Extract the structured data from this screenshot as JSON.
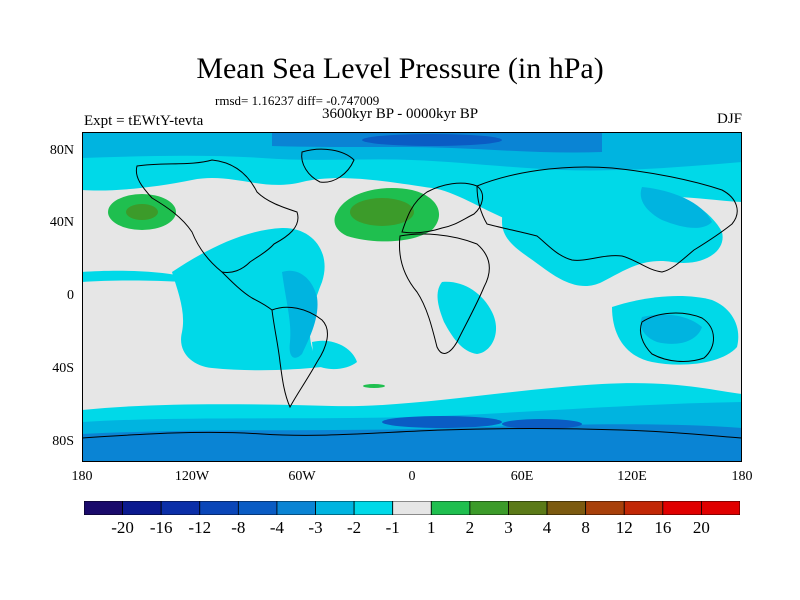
{
  "header": {
    "title": "Mean Sea Level Pressure (in hPa)",
    "stats": "rmsd= 1.16237 diff= -0.747009",
    "period": "3600kyr BP - 0000kyr BP",
    "expt": "Expt = tEWtY-tevta",
    "season": "DJF"
  },
  "axes": {
    "y_ticks": [
      "80N",
      "40N",
      "0",
      "40S",
      "80S"
    ],
    "x_ticks": [
      "180",
      "120W",
      "60W",
      "0",
      "60E",
      "120E",
      "180"
    ]
  },
  "colorbar": {
    "labels": [
      "-20",
      "-16",
      "-12",
      "-8",
      "-4",
      "-3",
      "-2",
      "-1",
      "1",
      "2",
      "3",
      "4",
      "8",
      "12",
      "16",
      "20"
    ],
    "colors": [
      "#1a0a6b",
      "#0b1a8f",
      "#0b2fa8",
      "#0a46b8",
      "#0a5cc4",
      "#0a84d4",
      "#00b4e0",
      "#00d9e8",
      "#e6e6e6",
      "#1fbf4f",
      "#3c9b2a",
      "#5b7a18",
      "#7c5a10",
      "#a8400a",
      "#c22806",
      "#e00000"
    ]
  },
  "legend_colors": {
    "land_neutral": "#e6e6e6",
    "light_neg": "#00d9e8",
    "mid_neg": "#00b4e0",
    "strong_neg": "#0a84d4",
    "stronger_neg": "#0a5cc4",
    "light_pos": "#1fbf4f",
    "mid_pos": "#3c9b2a"
  }
}
